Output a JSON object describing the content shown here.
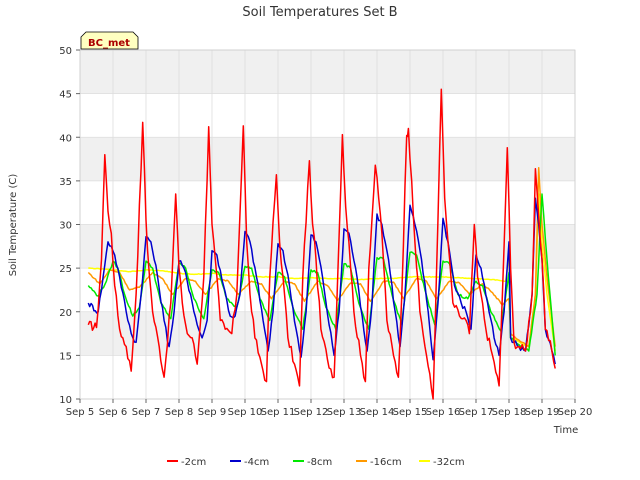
{
  "chart_data": {
    "type": "line",
    "title": "Soil Temperatures Set B",
    "xlabel": "Time",
    "ylabel": "Soil Temperature (C)",
    "ylim": [
      10,
      50
    ],
    "yticks": [
      10,
      15,
      20,
      25,
      30,
      35,
      40,
      45,
      50
    ],
    "xlim": [
      0,
      15
    ],
    "xticks": [
      {
        "x": 0,
        "label": "Sep 5"
      },
      {
        "x": 1,
        "label": "Sep 6"
      },
      {
        "x": 2,
        "label": "Sep 7"
      },
      {
        "x": 3,
        "label": "Sep 8"
      },
      {
        "x": 4,
        "label": "Sep 9"
      },
      {
        "x": 5,
        "label": "Sep 10"
      },
      {
        "x": 6,
        "label": "Sep 11"
      },
      {
        "x": 7,
        "label": "Sep 12"
      },
      {
        "x": 8,
        "label": "Sep 13"
      },
      {
        "x": 9,
        "label": "Sep 14"
      },
      {
        "x": 10,
        "label": "Sep 15"
      },
      {
        "x": 11,
        "label": "Sep 16"
      },
      {
        "x": 12,
        "label": "Sep 17"
      },
      {
        "x": 13,
        "label": "Sep 18"
      },
      {
        "x": 14,
        "label": "Sep 19"
      },
      {
        "x": 15,
        "label": "Sep 20"
      }
    ],
    "x_unit_note": "x values are days after Sep 5 00:00",
    "grid": true,
    "background_bands": true,
    "legend_position": "bottom",
    "annotation": "BC_met",
    "series": [
      {
        "name": "-2cm",
        "color": "#ff0000",
        "x": [
          0.25,
          0.5,
          0.65,
          0.75,
          0.85,
          0.95,
          1.05,
          1.2,
          1.4,
          1.55,
          1.7,
          1.9,
          2.0,
          2.05,
          2.2,
          2.4,
          2.55,
          2.75,
          2.9,
          3.0,
          3.1,
          3.25,
          3.4,
          3.55,
          3.75,
          3.9,
          4.0,
          4.1,
          4.25,
          4.4,
          4.6,
          4.75,
          4.95,
          5.05,
          5.15,
          5.3,
          5.5,
          5.65,
          5.75,
          5.95,
          6.05,
          6.15,
          6.3,
          6.5,
          6.65,
          6.75,
          6.95,
          7.05,
          7.15,
          7.3,
          7.5,
          7.7,
          7.8,
          7.95,
          8.05,
          8.15,
          8.3,
          8.5,
          8.65,
          8.75,
          8.95,
          9.05,
          9.15,
          9.3,
          9.5,
          9.65,
          9.75,
          9.9,
          9.95,
          10.05,
          10.15,
          10.3,
          10.5,
          10.7,
          10.8,
          10.95,
          11.05,
          11.15,
          11.3,
          11.5,
          11.7,
          11.8,
          11.95,
          12.05,
          12.15,
          12.3,
          12.5,
          12.7,
          12.8,
          12.95,
          13.05,
          13.15,
          13.3,
          13.5,
          13.7,
          13.8,
          13.9,
          14.0,
          14.1,
          14.3,
          14.4
        ],
        "y": [
          18.5,
          18.2,
          26.0,
          38.0,
          31.5,
          29.0,
          23.0,
          18.0,
          16.0,
          13.2,
          22.0,
          41.7,
          30.5,
          27.0,
          20.0,
          16.0,
          12.5,
          21.0,
          33.5,
          25.0,
          21.0,
          17.5,
          17.0,
          14.0,
          24.0,
          41.2,
          30.0,
          26.0,
          19.0,
          18.0,
          17.5,
          22.0,
          41.3,
          28.0,
          22.0,
          17.0,
          14.0,
          12.0,
          24.0,
          35.7,
          28.0,
          24.0,
          17.0,
          14.0,
          11.5,
          24.0,
          37.3,
          30.0,
          26.0,
          18.0,
          14.5,
          12.5,
          23.0,
          40.3,
          32.0,
          28.0,
          20.0,
          15.0,
          12.0,
          25.0,
          36.8,
          33.0,
          29.0,
          19.0,
          15.0,
          12.5,
          22.0,
          40.2,
          41.0,
          35.0,
          28.0,
          20.0,
          15.0,
          10.0,
          24.0,
          45.5,
          33.0,
          28.0,
          21.0,
          19.5,
          19.0,
          17.5,
          30.0,
          24.0,
          22.0,
          18.0,
          15.0,
          11.5,
          22.0,
          38.8,
          25.0,
          16.5,
          16.0,
          15.5,
          22.0,
          36.4,
          31.0,
          26.0,
          18.0,
          15.5,
          13.5
        ]
      },
      {
        "name": "-4cm",
        "color": "#0000cc",
        "x": [
          0.25,
          0.55,
          0.7,
          0.85,
          0.95,
          1.05,
          1.2,
          1.4,
          1.55,
          1.7,
          1.85,
          2.0,
          2.15,
          2.35,
          2.55,
          2.7,
          2.85,
          3.0,
          3.15,
          3.35,
          3.55,
          3.7,
          3.85,
          4.0,
          4.15,
          4.35,
          4.55,
          4.7,
          4.85,
          5.0,
          5.15,
          5.35,
          5.55,
          5.7,
          5.85,
          6.0,
          6.15,
          6.35,
          6.55,
          6.7,
          6.85,
          7.0,
          7.15,
          7.35,
          7.55,
          7.7,
          7.85,
          8.0,
          8.15,
          8.35,
          8.55,
          8.7,
          8.85,
          9.0,
          9.15,
          9.35,
          9.55,
          9.7,
          9.85,
          10.0,
          10.15,
          10.35,
          10.55,
          10.7,
          10.85,
          11.0,
          11.15,
          11.35,
          11.55,
          11.7,
          11.85,
          12.0,
          12.15,
          12.35,
          12.55,
          12.7,
          12.85,
          13.0,
          13.05,
          13.15,
          13.3,
          13.5,
          13.7,
          13.8,
          13.9,
          14.0,
          14.1,
          14.3,
          14.4
        ],
        "y": [
          21.0,
          20.0,
          24.0,
          28.0,
          27.5,
          26.5,
          24.0,
          20.0,
          17.5,
          16.5,
          22.0,
          28.6,
          28.0,
          24.0,
          19.0,
          16.0,
          20.0,
          25.8,
          25.0,
          22.0,
          18.5,
          17.0,
          19.0,
          27.0,
          26.5,
          23.0,
          19.5,
          19.5,
          22.0,
          29.2,
          28.0,
          24.0,
          19.0,
          15.5,
          20.0,
          27.8,
          27.0,
          23.0,
          18.0,
          14.8,
          20.0,
          28.8,
          28.0,
          24.0,
          18.5,
          15.0,
          20.0,
          29.5,
          29.0,
          25.0,
          19.5,
          15.5,
          21.0,
          31.2,
          30.0,
          26.0,
          20.0,
          16.0,
          22.0,
          32.2,
          30.0,
          26.0,
          20.0,
          14.5,
          21.0,
          30.7,
          28.0,
          23.0,
          21.0,
          20.0,
          18.0,
          26.5,
          25.0,
          21.0,
          17.0,
          15.0,
          20.0,
          28.0,
          17.0,
          16.5,
          16.0,
          15.5,
          22.0,
          33.0,
          30.0,
          26.0,
          18.0,
          15.5,
          14.0
        ]
      },
      {
        "name": "-8cm",
        "color": "#00e800",
        "x": [
          0.25,
          0.55,
          0.8,
          1.0,
          1.15,
          1.35,
          1.6,
          1.8,
          2.0,
          2.2,
          2.45,
          2.75,
          3.0,
          3.2,
          3.45,
          3.75,
          4.0,
          4.2,
          4.45,
          4.75,
          5.0,
          5.2,
          5.45,
          5.75,
          6.0,
          6.2,
          6.45,
          6.75,
          7.0,
          7.2,
          7.45,
          7.75,
          8.0,
          8.2,
          8.45,
          8.75,
          9.0,
          9.2,
          9.45,
          9.75,
          10.0,
          10.2,
          10.45,
          10.75,
          11.0,
          11.2,
          11.45,
          11.75,
          12.0,
          12.2,
          12.45,
          12.75,
          13.0,
          13.05,
          13.2,
          13.4,
          13.6,
          13.85,
          14.0,
          14.15,
          14.4
        ],
        "y": [
          23.0,
          21.8,
          23.5,
          25.8,
          25.0,
          22.0,
          19.5,
          20.5,
          25.8,
          25.0,
          21.0,
          19.2,
          25.6,
          25.0,
          21.5,
          19.2,
          24.8,
          24.5,
          21.5,
          20.5,
          25.2,
          25.0,
          21.5,
          19.0,
          24.5,
          24.0,
          20.5,
          18.0,
          24.8,
          24.5,
          20.5,
          18.0,
          25.5,
          25.0,
          21.0,
          18.0,
          26.2,
          26.0,
          22.0,
          18.5,
          26.8,
          26.5,
          22.5,
          18.5,
          25.8,
          25.5,
          22.0,
          21.5,
          23.5,
          23.0,
          20.0,
          17.8,
          24.5,
          17.0,
          16.5,
          16.0,
          15.5,
          22.0,
          33.5,
          26.0,
          15.0
        ]
      },
      {
        "name": "-16cm",
        "color": "#ff9900",
        "x": [
          0.25,
          0.6,
          0.9,
          1.2,
          1.5,
          1.8,
          2.2,
          2.5,
          2.8,
          3.2,
          3.5,
          3.8,
          4.2,
          4.5,
          4.8,
          5.2,
          5.5,
          5.8,
          6.2,
          6.5,
          6.8,
          7.2,
          7.5,
          7.8,
          8.2,
          8.5,
          8.8,
          9.2,
          9.5,
          9.8,
          10.2,
          10.5,
          10.8,
          11.2,
          11.5,
          11.8,
          12.2,
          12.5,
          12.8,
          13.0,
          13.05,
          13.2,
          13.4,
          13.6,
          13.8,
          13.9,
          14.0,
          14.15,
          14.4
        ],
        "y": [
          24.5,
          23.2,
          24.8,
          24.5,
          22.5,
          22.8,
          24.5,
          23.8,
          22.0,
          23.8,
          23.5,
          22.0,
          23.8,
          23.5,
          22.0,
          23.5,
          23.2,
          21.5,
          23.5,
          23.2,
          21.2,
          23.5,
          23.0,
          21.3,
          23.3,
          23.2,
          21.2,
          23.5,
          23.4,
          21.5,
          23.8,
          23.5,
          21.5,
          23.5,
          23.3,
          22.0,
          23.2,
          22.2,
          20.8,
          21.5,
          17.5,
          17.0,
          16.5,
          16.0,
          22.0,
          36.5,
          30.0,
          24.0,
          16.0
        ]
      },
      {
        "name": "-32cm",
        "color": "#ffff00",
        "x": [
          0.25,
          1.0,
          1.5,
          2.0,
          2.5,
          3.0,
          3.5,
          4.0,
          4.5,
          5.0,
          5.5,
          6.0,
          6.5,
          7.0,
          7.5,
          8.0,
          8.5,
          9.0,
          9.5,
          10.0,
          10.5,
          11.0,
          11.5,
          12.0,
          12.5,
          12.9,
          13.0,
          13.05,
          13.2,
          13.4,
          13.6,
          13.8,
          13.9,
          14.0,
          14.15,
          14.4
        ],
        "y": [
          25.0,
          24.8,
          24.6,
          24.8,
          24.7,
          24.4,
          24.3,
          24.4,
          24.2,
          24.2,
          24.0,
          24.0,
          23.8,
          23.9,
          23.8,
          23.8,
          23.7,
          23.8,
          23.8,
          24.0,
          24.0,
          24.0,
          23.9,
          23.8,
          23.7,
          23.5,
          26.5,
          17.0,
          16.8,
          16.3,
          16.0,
          22.0,
          33.5,
          28.0,
          22.0,
          15.5
        ]
      }
    ]
  }
}
